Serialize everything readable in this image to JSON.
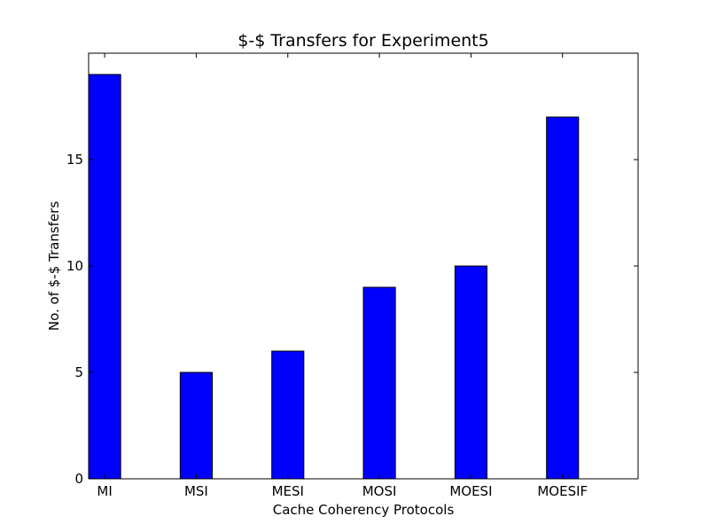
{
  "chart_data": {
    "type": "bar",
    "title": "$-$ Transfers for Experiment5",
    "xlabel": "Cache Coherency Protocols",
    "ylabel": "No. of $-$ Transfers",
    "categories": [
      "MI",
      "MSI",
      "MESI",
      "MOSI",
      "MOESI",
      "MOESIF"
    ],
    "values": [
      19,
      5,
      6,
      9,
      10,
      17
    ],
    "ylim": [
      0,
      20
    ],
    "xlim": [
      0,
      6
    ],
    "yticks": [
      0,
      5,
      10,
      15
    ],
    "ytick_labels": [
      "0",
      "5",
      "10",
      "15"
    ],
    "grid": false,
    "bar_color": "#0000ff",
    "edge_color": "#000000"
  }
}
